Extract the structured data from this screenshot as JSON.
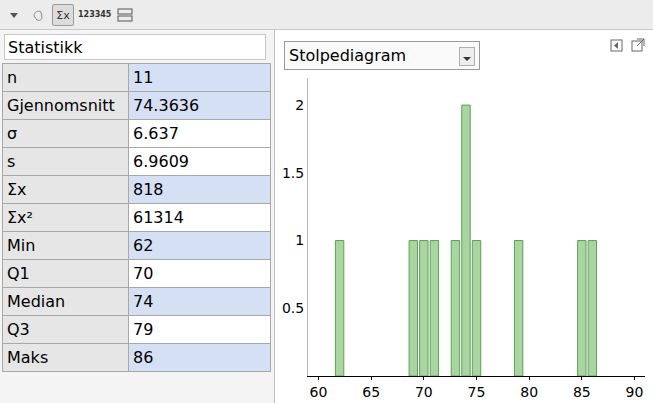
{
  "toolbar": {
    "icons": [
      "Σx",
      "123",
      "345"
    ]
  },
  "panel": {
    "title": "Statistikk",
    "rows": [
      [
        "n",
        11
      ],
      [
        "Gjennomsnitt",
        74.3636
      ],
      [
        "σ",
        6.637
      ],
      [
        "s",
        6.9609
      ],
      [
        "Σx",
        818
      ],
      [
        "Σx²",
        61314
      ],
      [
        "Min",
        62
      ],
      [
        "Q1",
        70
      ],
      [
        "Median",
        74
      ],
      [
        "Q3",
        79
      ],
      [
        "Maks",
        86
      ]
    ]
  },
  "selector": "Stolpediagram",
  "chart_data": {
    "type": "bar",
    "x": [
      62,
      69,
      70,
      71,
      73,
      74,
      75,
      79,
      85,
      86
    ],
    "values": [
      1,
      1,
      1,
      1,
      1,
      2,
      1,
      1,
      1,
      1
    ],
    "color": "#a9d5a1",
    "xlim": [
      59,
      91
    ],
    "xticks": [
      60,
      65,
      70,
      75,
      80,
      85,
      90
    ],
    "ylim": [
      0,
      2.2
    ],
    "yticks": [
      0.5,
      1,
      1.5,
      2
    ],
    "grid": false
  }
}
